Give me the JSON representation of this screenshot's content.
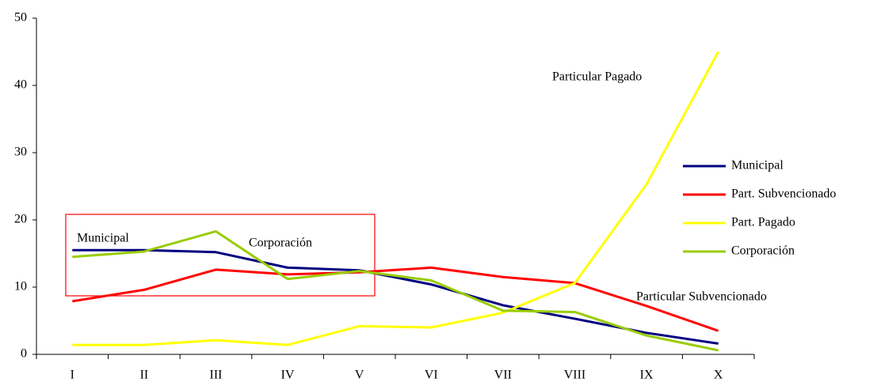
{
  "chart_data": {
    "type": "line",
    "categories": [
      "I",
      "II",
      "III",
      "IV",
      "V",
      "VI",
      "VII",
      "VIII",
      "IX",
      "X"
    ],
    "series": [
      {
        "name": "Municipal",
        "color": "#000080",
        "values": [
          15.5,
          15.5,
          15.2,
          12.9,
          12.5,
          10.4,
          7.3,
          5.3,
          3.2,
          1.6
        ]
      },
      {
        "name": "Part. Subvencionado",
        "color": "#ff0000",
        "values": [
          7.9,
          9.6,
          12.6,
          11.9,
          12.2,
          12.9,
          11.5,
          10.6,
          7.2,
          3.5
        ]
      },
      {
        "name": "Part. Pagado",
        "color": "#ffff00",
        "values": [
          1.4,
          1.4,
          2.1,
          1.4,
          4.2,
          4.0,
          6.2,
          10.6,
          25.3,
          45.0
        ]
      },
      {
        "name": "Corporación",
        "color": "#99cc00",
        "values": [
          14.5,
          15.3,
          18.3,
          11.2,
          12.4,
          11.0,
          6.5,
          6.3,
          2.8,
          0.6
        ]
      }
    ],
    "annotations": [
      "Particular Pagado",
      "Particular Subvencionado",
      "Municipal",
      "Corporación"
    ],
    "ylim": [
      0,
      50
    ],
    "yticks": [
      0,
      10,
      20,
      30,
      40,
      50
    ],
    "legend": "right"
  }
}
